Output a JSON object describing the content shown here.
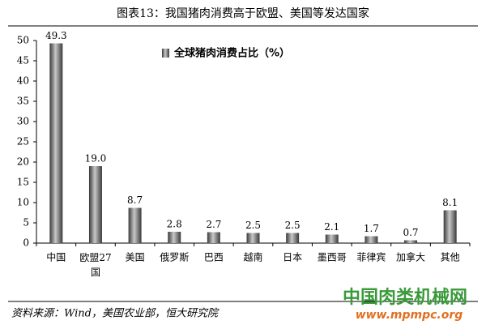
{
  "chart_data": {
    "type": "bar",
    "title": "图表13：我国猪肉消费高于欧盟、美国等发达国家",
    "categories": [
      "中国",
      "欧盟27国",
      "美国",
      "俄罗斯",
      "巴西",
      "越南",
      "日本",
      "墨西哥",
      "菲律宾",
      "加拿大",
      "其他"
    ],
    "series": [
      {
        "name": "全球猪肉消费占比（%）",
        "color": "#7a7a7a",
        "values": [
          49.3,
          19.0,
          8.7,
          2.8,
          2.7,
          2.5,
          2.5,
          2.1,
          1.7,
          0.7,
          8.1
        ],
        "value_labels": [
          "49.3",
          "19.0",
          "8.7",
          "2.8",
          "2.7",
          "2.5",
          "2.5",
          "2.1",
          "1.7",
          "0.7",
          "8.1"
        ]
      }
    ],
    "ylim": [
      0,
      50
    ],
    "yticks": [
      0,
      5,
      10,
      15,
      20,
      25,
      30,
      35,
      40,
      45,
      50
    ],
    "grid": false,
    "source": "资料来源：Wind，美国农业部，恒大研究院",
    "watermark": [
      "中国肉类机械网",
      "www.mpmpc.org"
    ]
  }
}
